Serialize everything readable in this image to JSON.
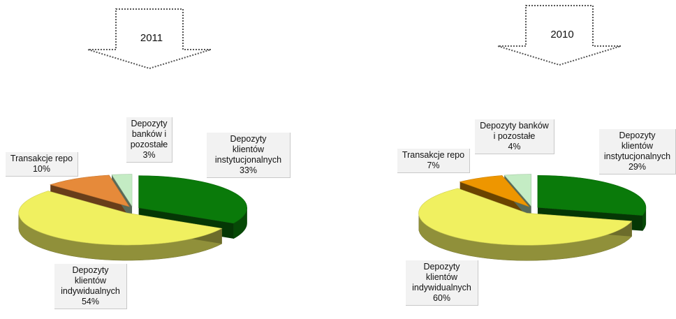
{
  "chart_data": [
    {
      "type": "pie",
      "title": "2011",
      "slices": [
        {
          "label": [
            "Depozyty",
            "klientów",
            "instytucjonalnych"
          ],
          "value": 33,
          "pct": "33%",
          "color": "#0a7a0a"
        },
        {
          "label": [
            "Depozyty",
            "klientów",
            "indywidualnych"
          ],
          "value": 54,
          "pct": "54%",
          "color": "#f0f060"
        },
        {
          "label": [
            "Transakcje repo"
          ],
          "value": 10,
          "pct": "10%",
          "color": "#e68a3a"
        },
        {
          "label": [
            "Depozyty",
            "banków i",
            "pozostałe"
          ],
          "value": 3,
          "pct": "3%",
          "color": "#c4ecc4"
        }
      ]
    },
    {
      "type": "pie",
      "title": "2010",
      "slices": [
        {
          "label": [
            "Depozyty",
            "klientów",
            "instytucjonalnych"
          ],
          "value": 29,
          "pct": "29%",
          "color": "#0a7a0a"
        },
        {
          "label": [
            "Depozyty",
            "klientów",
            "indywidualnych"
          ],
          "value": 60,
          "pct": "60%",
          "color": "#f0f060"
        },
        {
          "label": [
            "Transakcje repo"
          ],
          "value": 7,
          "pct": "7%",
          "color": "#ee9600"
        },
        {
          "label": [
            "Depozyty banków",
            "i pozostałe"
          ],
          "value": 4,
          "pct": "4%",
          "color": "#c4ecc4"
        }
      ]
    }
  ]
}
